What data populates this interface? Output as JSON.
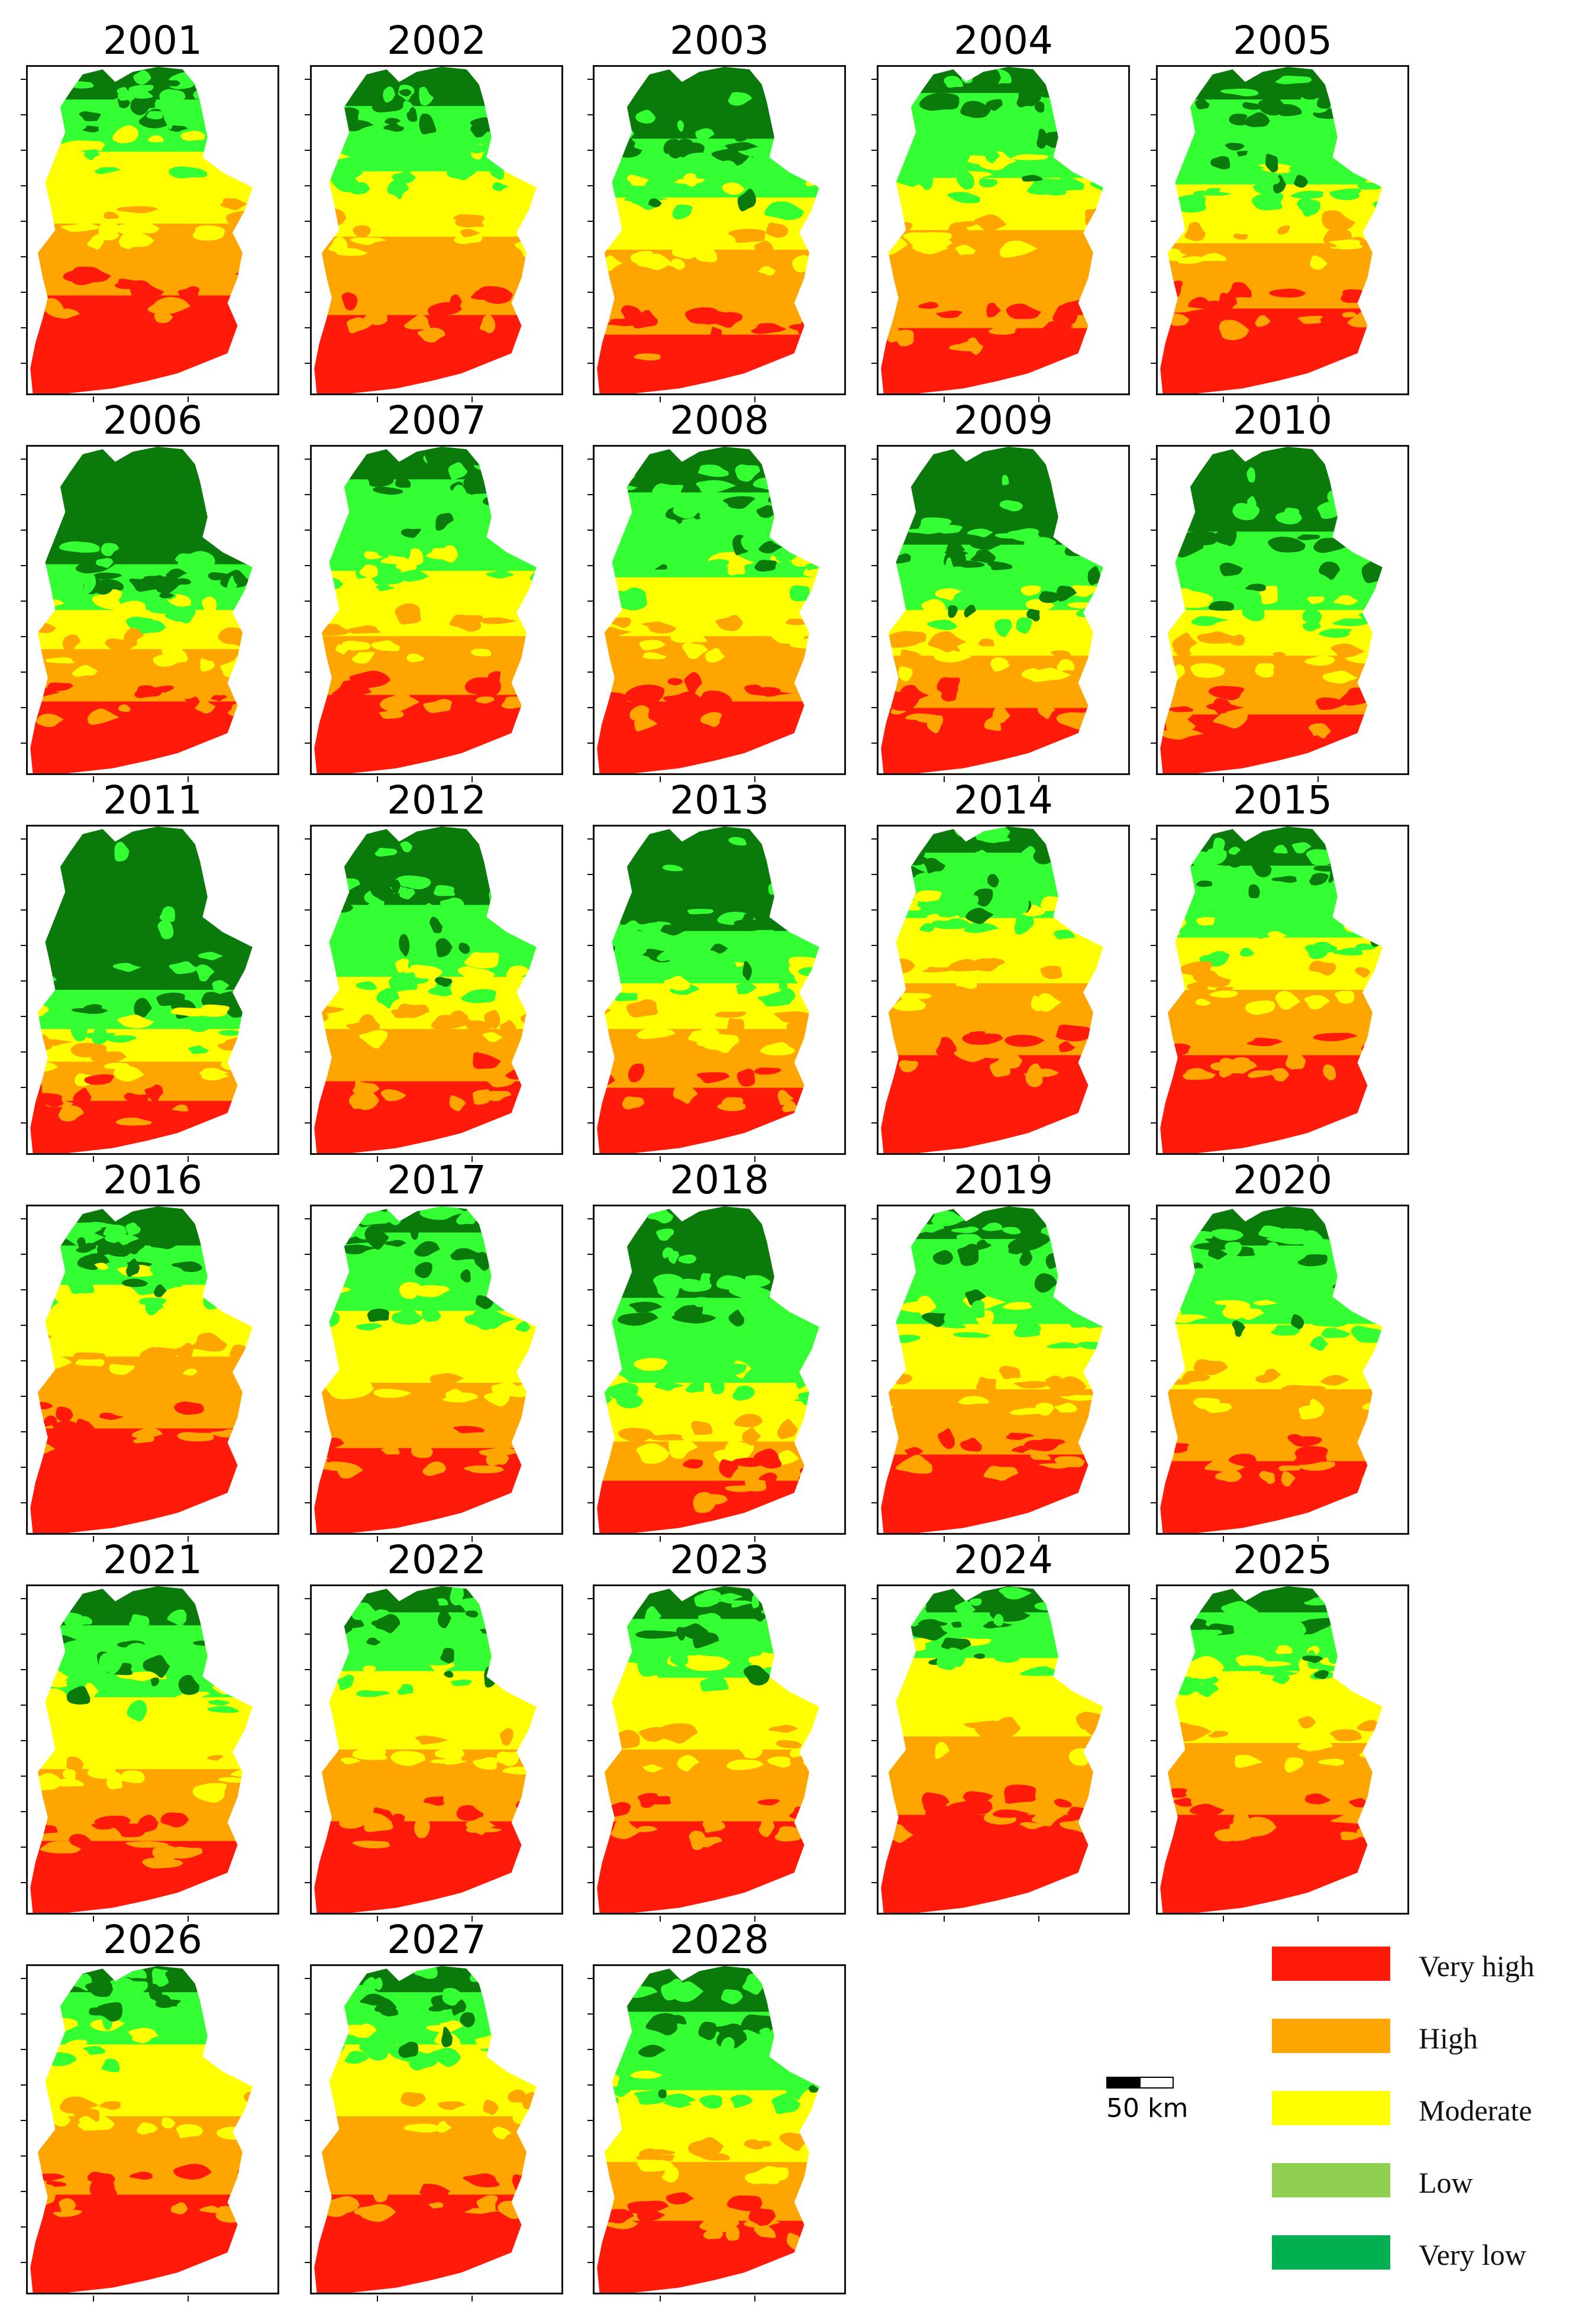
{
  "colors": {
    "very_high": "#ff1a0a",
    "high": "#ffa500",
    "moderate": "#ffff00",
    "low": "#33ff33",
    "very_low": "#0a7a0a"
  },
  "panels": [
    {
      "year": "2001",
      "mix": [
        0.3,
        0.22,
        0.22,
        0.16,
        0.1
      ]
    },
    {
      "year": "2002",
      "mix": [
        0.24,
        0.24,
        0.2,
        0.2,
        0.12
      ]
    },
    {
      "year": "2003",
      "mix": [
        0.18,
        0.26,
        0.16,
        0.18,
        0.22
      ]
    },
    {
      "year": "2004",
      "mix": [
        0.2,
        0.3,
        0.16,
        0.26,
        0.08
      ]
    },
    {
      "year": "2005",
      "mix": [
        0.26,
        0.2,
        0.18,
        0.26,
        0.1
      ]
    },
    {
      "year": "2006",
      "mix": [
        0.22,
        0.16,
        0.12,
        0.14,
        0.36
      ]
    },
    {
      "year": "2007",
      "mix": [
        0.24,
        0.18,
        0.2,
        0.28,
        0.1
      ]
    },
    {
      "year": "2008",
      "mix": [
        0.22,
        0.2,
        0.18,
        0.26,
        0.14
      ]
    },
    {
      "year": "2009",
      "mix": [
        0.2,
        0.16,
        0.14,
        0.2,
        0.3
      ]
    },
    {
      "year": "2010",
      "mix": [
        0.18,
        0.18,
        0.14,
        0.24,
        0.26
      ]
    },
    {
      "year": "2011",
      "mix": [
        0.16,
        0.12,
        0.1,
        0.12,
        0.5
      ]
    },
    {
      "year": "2012",
      "mix": [
        0.22,
        0.16,
        0.16,
        0.22,
        0.24
      ]
    },
    {
      "year": "2013",
      "mix": [
        0.2,
        0.18,
        0.14,
        0.16,
        0.32
      ]
    },
    {
      "year": "2014",
      "mix": [
        0.3,
        0.22,
        0.2,
        0.2,
        0.08
      ]
    },
    {
      "year": "2015",
      "mix": [
        0.3,
        0.2,
        0.16,
        0.22,
        0.12
      ]
    },
    {
      "year": "2016",
      "mix": [
        0.32,
        0.22,
        0.22,
        0.12,
        0.12
      ]
    },
    {
      "year": "2017",
      "mix": [
        0.26,
        0.2,
        0.22,
        0.24,
        0.08
      ]
    },
    {
      "year": "2018",
      "mix": [
        0.16,
        0.12,
        0.18,
        0.26,
        0.28
      ]
    },
    {
      "year": "2019",
      "mix": [
        0.24,
        0.2,
        0.2,
        0.26,
        0.1
      ]
    },
    {
      "year": "2020",
      "mix": [
        0.22,
        0.22,
        0.2,
        0.24,
        0.12
      ]
    },
    {
      "year": "2021",
      "mix": [
        0.22,
        0.22,
        0.22,
        0.22,
        0.12
      ]
    },
    {
      "year": "2022",
      "mix": [
        0.28,
        0.22,
        0.24,
        0.18,
        0.08
      ]
    },
    {
      "year": "2023",
      "mix": [
        0.28,
        0.22,
        0.22,
        0.18,
        0.1
      ]
    },
    {
      "year": "2024",
      "mix": [
        0.3,
        0.24,
        0.24,
        0.14,
        0.08
      ]
    },
    {
      "year": "2025",
      "mix": [
        0.3,
        0.22,
        0.22,
        0.18,
        0.08
      ]
    },
    {
      "year": "2026",
      "mix": [
        0.3,
        0.24,
        0.22,
        0.16,
        0.08
      ]
    },
    {
      "year": "2027",
      "mix": [
        0.3,
        0.24,
        0.22,
        0.16,
        0.08
      ]
    },
    {
      "year": "2028",
      "mix": [
        0.22,
        0.18,
        0.22,
        0.24,
        0.14
      ]
    }
  ],
  "legend": [
    {
      "label": "Very high",
      "color": "#ff1a0a"
    },
    {
      "label": "High",
      "color": "#ffa500"
    },
    {
      "label": "Moderate",
      "color": "#ffff00"
    },
    {
      "label": "Low",
      "color": "#90d050"
    },
    {
      "label": "Very low",
      "color": "#00b050"
    }
  ],
  "scale_bar": {
    "label": "50 km"
  }
}
